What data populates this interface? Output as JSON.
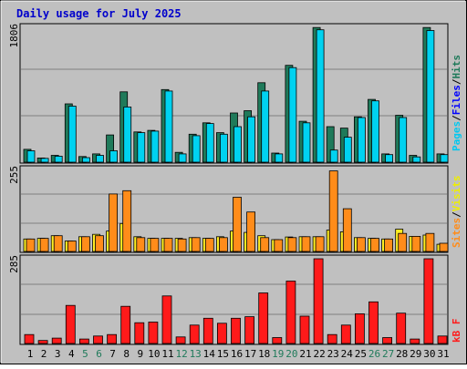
{
  "title": "Daily usage for July 2025",
  "colors": {
    "title": "#0000cc",
    "background": "#c0c0c0",
    "hits": "#1f7a5a",
    "files": "#00d2f0",
    "pages": "#00c8f0",
    "sites": "#ff8c1a",
    "visits": "#ffee22",
    "kbytes": "#ff1a1a",
    "weekend_day": "#1f7a5a",
    "weekday_day": "#000000"
  },
  "chart_data": [
    {
      "type": "bar",
      "name": "hits-files-pages",
      "ymax_label": "1806",
      "ylim": [
        0,
        1806
      ],
      "legend": [
        "Pages",
        "Files",
        "Hits"
      ],
      "categories": [
        "1",
        "2",
        "3",
        "4",
        "5",
        "6",
        "7",
        "8",
        "9",
        "10",
        "11",
        "12",
        "13",
        "14",
        "15",
        "16",
        "17",
        "18",
        "19",
        "20",
        "21",
        "22",
        "23",
        "24",
        "25",
        "26",
        "27",
        "28",
        "29",
        "30",
        "31"
      ],
      "series": [
        {
          "name": "Hits",
          "values": [
            170,
            55,
            90,
            770,
            75,
            110,
            360,
            930,
            400,
            420,
            960,
            130,
            370,
            520,
            390,
            650,
            680,
            1050,
            120,
            1280,
            540,
            1780,
            470,
            450,
            600,
            830,
            110,
            620,
            90,
            1780,
            110
          ]
        },
        {
          "name": "Files",
          "values": [
            150,
            50,
            80,
            740,
            60,
            90,
            150,
            730,
            390,
            410,
            940,
            110,
            350,
            510,
            370,
            470,
            600,
            940,
            110,
            1250,
            520,
            1750,
            160,
            330,
            590,
            810,
            100,
            590,
            70,
            1740,
            100
          ]
        }
      ]
    },
    {
      "type": "bar",
      "name": "sites-visits",
      "ymax_label": "255",
      "ylim": [
        0,
        255
      ],
      "legend": [
        "Sites",
        "Visits"
      ],
      "categories": [
        "1",
        "2",
        "3",
        "4",
        "5",
        "6",
        "7",
        "8",
        "9",
        "10",
        "11",
        "12",
        "13",
        "14",
        "15",
        "16",
        "17",
        "18",
        "19",
        "20",
        "21",
        "22",
        "23",
        "24",
        "25",
        "26",
        "27",
        "28",
        "29",
        "30",
        "31"
      ],
      "series": [
        {
          "name": "Visits",
          "values": [
            38,
            40,
            48,
            32,
            45,
            52,
            62,
            85,
            45,
            40,
            40,
            40,
            42,
            40,
            45,
            62,
            58,
            48,
            36,
            44,
            45,
            45,
            65,
            60,
            42,
            40,
            38,
            68,
            46,
            50,
            22
          ]
        },
        {
          "name": "Sites",
          "values": [
            38,
            40,
            48,
            32,
            45,
            48,
            175,
            185,
            42,
            40,
            40,
            38,
            42,
            40,
            42,
            165,
            120,
            42,
            36,
            42,
            45,
            45,
            245,
            130,
            42,
            40,
            38,
            55,
            46,
            55,
            25
          ]
        }
      ]
    },
    {
      "type": "bar",
      "name": "kbytes",
      "ymax_label": "285",
      "ylim": [
        0,
        285
      ],
      "legend": [
        "kB F"
      ],
      "categories": [
        "1",
        "2",
        "3",
        "4",
        "5",
        "6",
        "7",
        "8",
        "9",
        "10",
        "11",
        "12",
        "13",
        "14",
        "15",
        "16",
        "17",
        "18",
        "19",
        "20",
        "21",
        "22",
        "23",
        "24",
        "25",
        "26",
        "27",
        "28",
        "29",
        "30",
        "31"
      ],
      "series": [
        {
          "name": "kB F",
          "values": [
            30,
            10,
            18,
            128,
            15,
            25,
            30,
            125,
            70,
            72,
            160,
            22,
            62,
            85,
            68,
            85,
            90,
            170,
            20,
            210,
            92,
            285,
            30,
            62,
            100,
            140,
            20,
            102,
            15,
            285,
            25
          ]
        }
      ]
    }
  ],
  "days": [
    "1",
    "2",
    "3",
    "4",
    "5",
    "6",
    "7",
    "8",
    "9",
    "10",
    "11",
    "12",
    "13",
    "14",
    "15",
    "16",
    "17",
    "18",
    "19",
    "20",
    "21",
    "22",
    "23",
    "24",
    "25",
    "26",
    "27",
    "28",
    "29",
    "30",
    "31"
  ],
  "weekend_days": [
    "5",
    "6",
    "12",
    "13",
    "19",
    "20",
    "26",
    "27"
  ]
}
